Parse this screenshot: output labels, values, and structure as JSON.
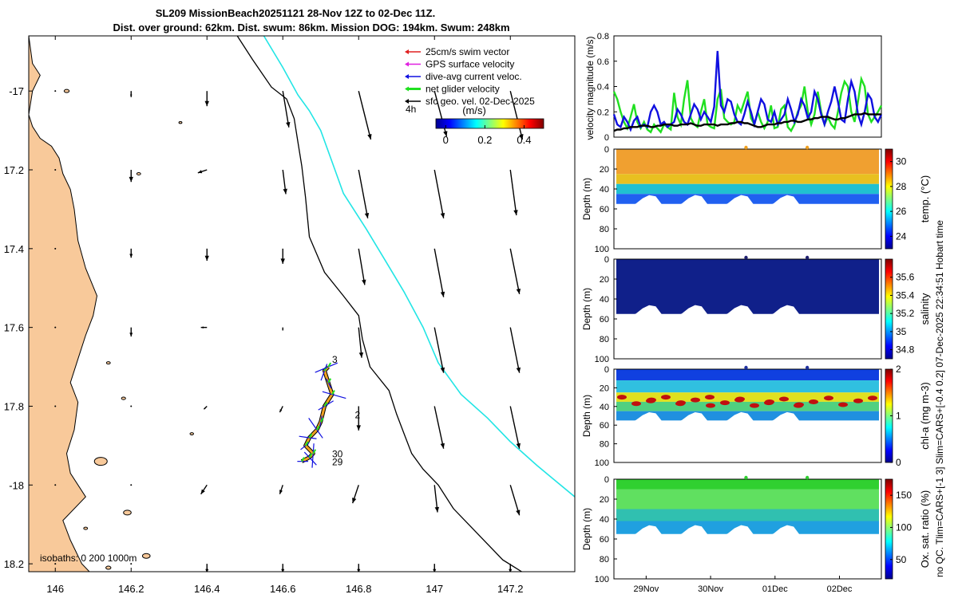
{
  "title_line1": "SL209 MissionBeach20251121 28-Nov 12Z to 02-Dec 11Z.",
  "title_line2": "Dist. over ground: 62km. Dist. swum: 86km. Mission DOG: 194km. Swum: 248km",
  "right_side_label": "no QC. Tlim=CARS+[-1 3] Slim=CARS+[-0.4 0.2] 07-Dec-2025 22:34:51 Hobart time",
  "colors": {
    "land": "#f8c99a",
    "isobath_200": "#000000",
    "isobath_1000": "#22e5e5",
    "swim": "#e02020",
    "gps": "#e020e0",
    "dive_avg": "#1010e0",
    "net_glider": "#20e020",
    "sfc_geo": "#000000",
    "track": "#f0a020"
  },
  "chart_data": [
    {
      "type": "line",
      "name": "map",
      "title": "",
      "xlim": [
        145.93,
        147.37
      ],
      "ylim": [
        -18.22,
        -16.86
      ],
      "xticks": [
        146,
        146.2,
        146.4,
        146.6,
        146.8,
        147,
        147.2
      ],
      "xtick_labels": [
        "146",
        "146.2",
        "146.4",
        "146.6",
        "146.8",
        "147",
        "147.2"
      ],
      "yticks": [
        -17,
        -17.2,
        -17.4,
        -17.6,
        -17.8,
        -18,
        -18.2
      ],
      "ytick_labels": [
        "-17",
        "17.2",
        "17.4",
        "17.6",
        "17.8",
        "-18",
        "18.2"
      ],
      "legend": {
        "placement": "top-right",
        "items": [
          {
            "label": "25cm/s swim vector",
            "color_key": "swim"
          },
          {
            "label": "GPS surface velocity",
            "color_key": "gps"
          },
          {
            "label": "dive-avg current veloc.",
            "color_key": "dive_avg"
          },
          {
            "label": "net glider velocity",
            "color_key": "net_glider"
          },
          {
            "label": "sfc geo. vel. 02-Dec-2025",
            "color_key": "sfc_geo"
          }
        ]
      },
      "colorbar": {
        "label": "(m/s)",
        "range": [
          -0.05,
          0.5
        ],
        "ticks": [
          0,
          0.2,
          0.4
        ],
        "tick_labels": [
          "0",
          "0.2",
          "0.4"
        ],
        "side_label": "4h"
      },
      "isobath_label": "isobaths: 0   200 1000m",
      "day_labels": [
        {
          "text": "3",
          "lon": 146.73,
          "lat": -17.69
        },
        {
          "text": "2",
          "lon": 146.79,
          "lat": -17.83
        },
        {
          "text": "30",
          "lon": 146.73,
          "lat": -17.93
        },
        {
          "text": "29",
          "lon": 146.73,
          "lat": -17.95
        }
      ],
      "isobath_200": [
        [
          146.48,
          -16.86
        ],
        [
          146.52,
          -16.92
        ],
        [
          146.57,
          -16.99
        ],
        [
          146.61,
          -17.02
        ],
        [
          146.63,
          -17.07
        ],
        [
          146.64,
          -17.13
        ],
        [
          146.65,
          -17.19
        ],
        [
          146.66,
          -17.27
        ],
        [
          146.67,
          -17.37
        ],
        [
          146.71,
          -17.46
        ],
        [
          146.76,
          -17.52
        ],
        [
          146.8,
          -17.57
        ],
        [
          146.81,
          -17.63
        ],
        [
          146.83,
          -17.7
        ],
        [
          146.88,
          -17.76
        ],
        [
          146.9,
          -17.82
        ],
        [
          146.92,
          -17.87
        ],
        [
          146.94,
          -17.92
        ],
        [
          146.97,
          -17.96
        ],
        [
          147.01,
          -18.0
        ],
        [
          147.05,
          -18.06
        ],
        [
          147.11,
          -18.12
        ],
        [
          147.18,
          -18.19
        ],
        [
          147.23,
          -18.22
        ]
      ],
      "isobath_1000": [
        [
          146.55,
          -16.86
        ],
        [
          146.6,
          -16.94
        ],
        [
          146.64,
          -17.01
        ],
        [
          146.67,
          -17.05
        ],
        [
          146.7,
          -17.1
        ],
        [
          146.73,
          -17.18
        ],
        [
          146.76,
          -17.26
        ],
        [
          146.82,
          -17.35
        ],
        [
          146.87,
          -17.43
        ],
        [
          146.92,
          -17.51
        ],
        [
          146.97,
          -17.6
        ],
        [
          147.01,
          -17.69
        ],
        [
          147.07,
          -17.77
        ],
        [
          147.14,
          -17.83
        ],
        [
          147.2,
          -17.89
        ],
        [
          147.27,
          -17.95
        ],
        [
          147.32,
          -17.99
        ],
        [
          147.37,
          -18.03
        ]
      ],
      "coast": [
        [
          145.93,
          -16.86
        ],
        [
          145.94,
          -16.93
        ],
        [
          145.96,
          -16.96
        ],
        [
          145.94,
          -17.0
        ],
        [
          145.93,
          -17.06
        ],
        [
          145.94,
          -17.09
        ],
        [
          145.96,
          -17.12
        ],
        [
          145.99,
          -17.14
        ],
        [
          146.01,
          -17.17
        ],
        [
          146.02,
          -17.21
        ],
        [
          146.04,
          -17.25
        ],
        [
          146.05,
          -17.3
        ],
        [
          146.06,
          -17.38
        ],
        [
          146.08,
          -17.45
        ],
        [
          146.11,
          -17.52
        ],
        [
          146.1,
          -17.57
        ],
        [
          146.08,
          -17.62
        ],
        [
          146.06,
          -17.68
        ],
        [
          146.04,
          -17.74
        ],
        [
          146.06,
          -17.79
        ],
        [
          146.05,
          -17.86
        ],
        [
          146.03,
          -17.92
        ],
        [
          146.04,
          -17.97
        ],
        [
          146.08,
          -18.03
        ],
        [
          146.02,
          -18.09
        ],
        [
          146.04,
          -18.14
        ],
        [
          146.07,
          -18.2
        ],
        [
          146.09,
          -18.22
        ],
        [
          145.93,
          -18.22
        ]
      ],
      "geo_arrows": {
        "lons": [
          146.0,
          146.2,
          146.4,
          146.6,
          146.8,
          147.0,
          147.2
        ],
        "lats": [
          -17.0,
          -17.2,
          -17.4,
          -17.6,
          -17.8,
          -18.0,
          -18.2
        ],
        "u": [
          [
            0,
            0,
            0,
            0.02,
            0.04,
            0.04,
            0.04
          ],
          [
            0,
            0,
            -0.03,
            0.01,
            0.03,
            0.03,
            0.02
          ],
          [
            0,
            0,
            0,
            0,
            0.02,
            0.03,
            0.03
          ],
          [
            0,
            0,
            -0.02,
            0,
            0.01,
            0.03,
            0.03
          ],
          [
            0,
            0,
            -0.01,
            -0.01,
            0,
            0.03,
            0.03
          ],
          [
            0,
            0,
            -0.02,
            -0.01,
            -0.02,
            0.01,
            0.03
          ],
          [
            0,
            0,
            0,
            0,
            0,
            0,
            0
          ]
        ],
        "v": [
          [
            0,
            -0.02,
            -0.05,
            -0.12,
            -0.16,
            -0.15,
            -0.16
          ],
          [
            0,
            -0.04,
            -0.01,
            -0.08,
            -0.16,
            -0.16,
            -0.15
          ],
          [
            0,
            -0.03,
            -0.04,
            -0.05,
            -0.12,
            -0.16,
            -0.15
          ],
          [
            0,
            -0.03,
            0,
            -0.01,
            -0.1,
            -0.15,
            -0.15
          ],
          [
            0,
            0,
            -0.01,
            -0.02,
            -0.08,
            -0.14,
            -0.14
          ],
          [
            0,
            0,
            -0.03,
            -0.03,
            -0.06,
            -0.09,
            -0.1
          ],
          [
            0,
            0,
            -0.03,
            -0.03,
            -0.03,
            -0.03,
            -0.03
          ]
        ]
      },
      "track": [
        [
          146.65,
          -17.94
        ],
        [
          146.67,
          -17.93
        ],
        [
          146.68,
          -17.92
        ],
        [
          146.66,
          -17.9
        ],
        [
          146.67,
          -17.88
        ],
        [
          146.69,
          -17.86
        ],
        [
          146.7,
          -17.84
        ],
        [
          146.71,
          -17.8
        ],
        [
          146.73,
          -17.77
        ],
        [
          146.72,
          -17.74
        ],
        [
          146.71,
          -17.71
        ],
        [
          146.72,
          -17.7
        ]
      ]
    },
    {
      "type": "line",
      "name": "velocity",
      "ylabel": "velocity magnitude (m/s)",
      "ylim": [
        0,
        0.8
      ],
      "yticks": [
        0,
        0.2,
        0.4,
        0.6,
        0.8
      ],
      "ytick_labels": [
        "0",
        "0.2",
        "0.4",
        "0.6",
        "0.8"
      ],
      "x": [
        0,
        0.05,
        0.1,
        0.15,
        0.2,
        0.25,
        0.3,
        0.35,
        0.4,
        0.45,
        0.5,
        0.55,
        0.6,
        0.65,
        0.7,
        0.75,
        0.8,
        0.85,
        0.9,
        0.95,
        1,
        1.05,
        1.1,
        1.15,
        1.2,
        1.25,
        1.3,
        1.35,
        1.4,
        1.45,
        1.5,
        1.55,
        1.6,
        1.65,
        1.7,
        1.75,
        1.8,
        1.85,
        1.9,
        1.95,
        2,
        2.05,
        2.1,
        2.15,
        2.2,
        2.25,
        2.3,
        2.35,
        2.4,
        2.45,
        2.5,
        2.55,
        2.6,
        2.65,
        2.7,
        2.75,
        2.8,
        2.85,
        2.9,
        2.95,
        3,
        3.05,
        3.1,
        3.15,
        3.2,
        3.25,
        3.3,
        3.35,
        3.4,
        3.45,
        3.5,
        3.55,
        3.6,
        3.65,
        3.7,
        3.75,
        3.8,
        3.85,
        3.9,
        3.95,
        4
      ],
      "series": [
        {
          "name": "net glider velocity",
          "color_key": "net_glider",
          "values": [
            0.36,
            0.3,
            0.2,
            0.12,
            0.07,
            0.16,
            0.26,
            0.12,
            0.07,
            0.12,
            0.06,
            0.04,
            0.1,
            0.07,
            0.04,
            0.1,
            0.08,
            0.06,
            0.35,
            0.16,
            0.1,
            0.3,
            0.45,
            0.15,
            0.1,
            0.08,
            0.2,
            0.3,
            0.1,
            0.08,
            0.07,
            0.3,
            0.38,
            0.15,
            0.12,
            0.1,
            0.12,
            0.25,
            0.2,
            0.28,
            0.36,
            0.15,
            0.1,
            0.2,
            0.12,
            0.07,
            0.12,
            0.25,
            0.07,
            0.08,
            0.22,
            0.25,
            0.08,
            0.05,
            0.1,
            0.2,
            0.25,
            0.4,
            0.2,
            0.1,
            0.18,
            0.36,
            0.2,
            0.1,
            0.16,
            0.1,
            0.07,
            0.2,
            0.35,
            0.44,
            0.4,
            0.2,
            0.12,
            0.28,
            0.46,
            0.4,
            0.18,
            0.12,
            0.16,
            0.2,
            0.25
          ]
        },
        {
          "name": "dive-avg current veloc.",
          "color_key": "dive_avg",
          "values": [
            0.18,
            0.1,
            0.08,
            0.16,
            0.12,
            0.06,
            0.13,
            0.16,
            0.08,
            0.1,
            0.08,
            0.2,
            0.25,
            0.2,
            0.1,
            0.12,
            0.08,
            0.1,
            0.12,
            0.22,
            0.18,
            0.12,
            0.1,
            0.18,
            0.26,
            0.22,
            0.14,
            0.2,
            0.16,
            0.12,
            0.24,
            0.68,
            0.25,
            0.2,
            0.3,
            0.28,
            0.18,
            0.12,
            0.1,
            0.18,
            0.28,
            0.2,
            0.1,
            0.2,
            0.3,
            0.26,
            0.14,
            0.12,
            0.2,
            0.1,
            0.14,
            0.18,
            0.3,
            0.22,
            0.12,
            0.18,
            0.3,
            0.25,
            0.15,
            0.2,
            0.36,
            0.3,
            0.18,
            0.1,
            0.2,
            0.28,
            0.4,
            0.28,
            0.14,
            0.12,
            0.3,
            0.44,
            0.36,
            0.18,
            0.1,
            0.2,
            0.34,
            0.3,
            0.16,
            0.12,
            0.18
          ]
        },
        {
          "name": "sfc geo. vel. 02-Dec-2025",
          "color_key": "sfc_geo",
          "values": [
            0.05,
            0.06,
            0.06,
            0.07,
            0.07,
            0.08,
            0.08,
            0.08,
            0.09,
            0.09,
            0.09,
            0.08,
            0.08,
            0.09,
            0.09,
            0.1,
            0.1,
            0.1,
            0.09,
            0.09,
            0.1,
            0.1,
            0.1,
            0.11,
            0.1,
            0.09,
            0.09,
            0.1,
            0.1,
            0.1,
            0.1,
            0.09,
            0.1,
            0.1,
            0.1,
            0.11,
            0.11,
            0.12,
            0.12,
            0.11,
            0.11,
            0.1,
            0.09,
            0.08,
            0.08,
            0.09,
            0.1,
            0.1,
            0.1,
            0.11,
            0.11,
            0.12,
            0.12,
            0.13,
            0.13,
            0.12,
            0.12,
            0.13,
            0.14,
            0.14,
            0.15,
            0.15,
            0.16,
            0.16,
            0.16,
            0.15,
            0.14,
            0.14,
            0.15,
            0.15,
            0.16,
            0.17,
            0.18,
            0.18,
            0.18,
            0.19,
            0.18,
            0.18,
            0.18,
            0.18,
            0.18
          ]
        }
      ]
    },
    {
      "type": "heatmap",
      "name": "temperature",
      "ylabel": "Depth (m)",
      "cbar_label": "temp. (°C)",
      "cbar_range": [
        23,
        31
      ],
      "cbar_ticks": [
        24,
        26,
        28,
        30
      ],
      "cbar_tick_labels": [
        "24",
        "26",
        "28",
        "30"
      ],
      "marker_color": "#f0a020",
      "ylim": [
        0,
        100
      ],
      "yticks": [
        0,
        20,
        40,
        60,
        80,
        100
      ],
      "ytick_labels": [
        "0",
        "20",
        "40",
        "60",
        "80",
        "100"
      ]
    },
    {
      "type": "heatmap",
      "name": "salinity",
      "ylabel": "Depth (m)",
      "cbar_label": "salinity",
      "cbar_range": [
        34.7,
        35.8
      ],
      "cbar_ticks": [
        34.8,
        35,
        35.2,
        35.4,
        35.6
      ],
      "cbar_tick_labels": [
        "34.8",
        "35",
        "35.2",
        "35.4",
        "35.6"
      ],
      "marker_color": "#202070",
      "ylim": [
        0,
        100
      ],
      "yticks": [
        0,
        20,
        40,
        60,
        80,
        100
      ],
      "ytick_labels": [
        "0",
        "20",
        "40",
        "60",
        "80",
        "100"
      ]
    },
    {
      "type": "heatmap",
      "name": "chlorophyll",
      "ylabel": "Depth (m)",
      "cbar_label": "chl-a (mg m-3)",
      "cbar_range": [
        0,
        2
      ],
      "cbar_ticks": [
        0,
        1,
        2
      ],
      "cbar_tick_labels": [
        "0",
        "1",
        "2"
      ],
      "marker_color": "#2030a0",
      "ylim": [
        0,
        100
      ],
      "yticks": [
        0,
        20,
        40,
        60,
        80,
        100
      ],
      "ytick_labels": [
        "0",
        "20",
        "40",
        "60",
        "80",
        "100"
      ]
    },
    {
      "type": "heatmap",
      "name": "oxygen",
      "ylabel": "Depth (m)",
      "cbar_label": "Ox. sat. ratio (%)",
      "cbar_range": [
        20,
        175
      ],
      "cbar_ticks": [
        50,
        100,
        150
      ],
      "cbar_tick_labels": [
        "50",
        "100",
        "150"
      ],
      "marker_color": "#30d030",
      "ylim": [
        0,
        100
      ],
      "yticks": [
        0,
        20,
        40,
        60,
        80,
        100
      ],
      "ytick_labels": [
        "0",
        "20",
        "40",
        "60",
        "80",
        "100"
      ],
      "xlim": [
        -0.5,
        3.65
      ],
      "xticks": [
        0,
        1,
        2,
        3
      ],
      "xtick_labels": [
        "29Nov",
        "30Nov",
        "01Dec",
        "02Dec"
      ],
      "day_markers": [
        1.55,
        2.5
      ]
    }
  ]
}
